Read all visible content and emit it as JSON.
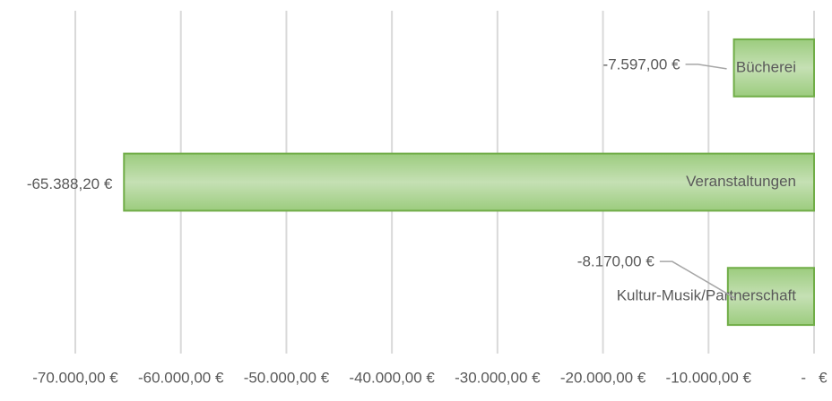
{
  "chart_data": {
    "type": "barh",
    "categories": [
      "Bücherei",
      "Veranstaltungen",
      "Kultur-Musik/Partnerschaft"
    ],
    "values": [
      -7597,
      -65388.2,
      -8170
    ],
    "value_labels": [
      "-7.597,00 €",
      "-65.388,20 €",
      "-8.170,00 €"
    ],
    "color": "#a9d18e",
    "xlim": [
      -70000,
      0
    ],
    "xticks": [
      {
        "value": -70000,
        "label": "-70.000,00 €"
      },
      {
        "value": -60000,
        "label": "-60.000,00 €"
      },
      {
        "value": -50000,
        "label": "-50.000,00 €"
      },
      {
        "value": -40000,
        "label": "-40.000,00 €"
      },
      {
        "value": -30000,
        "label": "-30.000,00 €"
      },
      {
        "value": -20000,
        "label": "-20.000,00 €"
      },
      {
        "value": -10000,
        "label": "-10.000,00 €"
      },
      {
        "value": 0,
        "label": "-   €"
      }
    ],
    "grid": true
  }
}
